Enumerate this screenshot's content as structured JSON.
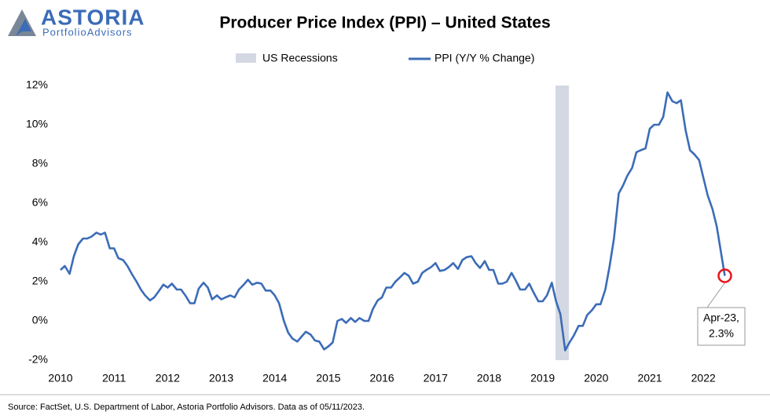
{
  "logo": {
    "name": "ASTORIA",
    "tagline": "PortfolioAdvisors"
  },
  "chart_data": {
    "type": "line",
    "title": "Producer Price Index (PPI) – United States",
    "source": "Source: FactSet, U.S. Department of Labor, Astoria Portfolio Advisors. Data as of 05/11/2023.",
    "recessions": {
      "name": "US Recessions",
      "color": "#d3d8e3",
      "spans": [
        [
          2019.24,
          2019.49
        ]
      ]
    },
    "series": [
      {
        "name": "PPI (Y/Y % Change)",
        "color": "#3b6cb7",
        "x": [
          2010,
          2010.08,
          2010.17,
          2010.25,
          2010.33,
          2010.42,
          2010.5,
          2010.58,
          2010.67,
          2010.75,
          2010.83,
          2010.92,
          2011,
          2011.08,
          2011.17,
          2011.25,
          2011.33,
          2011.42,
          2011.5,
          2011.58,
          2011.67,
          2011.75,
          2011.83,
          2011.92,
          2012,
          2012.08,
          2012.17,
          2012.25,
          2012.33,
          2012.42,
          2012.5,
          2012.58,
          2012.67,
          2012.75,
          2012.83,
          2012.92,
          2013,
          2013.08,
          2013.17,
          2013.25,
          2013.33,
          2013.42,
          2013.5,
          2013.58,
          2013.67,
          2013.75,
          2013.83,
          2013.92,
          2014,
          2014.08,
          2014.17,
          2014.25,
          2014.33,
          2014.42,
          2014.5,
          2014.58,
          2014.67,
          2014.75,
          2014.83,
          2014.92,
          2015,
          2015.08,
          2015.17,
          2015.25,
          2015.33,
          2015.42,
          2015.5,
          2015.58,
          2015.67,
          2015.75,
          2015.83,
          2015.92,
          2016,
          2016.08,
          2016.17,
          2016.25,
          2016.33,
          2016.42,
          2016.5,
          2016.58,
          2016.67,
          2016.75,
          2016.83,
          2016.92,
          2017,
          2017.08,
          2017.17,
          2017.25,
          2017.33,
          2017.42,
          2017.5,
          2017.58,
          2017.67,
          2017.75,
          2017.83,
          2017.92,
          2018,
          2018.08,
          2018.17,
          2018.25,
          2018.33,
          2018.42,
          2018.5,
          2018.58,
          2018.67,
          2018.75,
          2018.83,
          2018.92,
          2019,
          2019.08,
          2019.17,
          2019.25,
          2019.33,
          2019.42,
          2019.5,
          2019.58,
          2019.67,
          2019.75,
          2019.83,
          2019.92,
          2020,
          2020.08,
          2020.17,
          2020.25,
          2020.33,
          2020.42,
          2020.5,
          2020.58,
          2020.67,
          2020.75,
          2020.83,
          2020.92,
          2021,
          2021.08,
          2021.17,
          2021.25,
          2021.33,
          2021.42,
          2021.5,
          2021.58,
          2021.67,
          2021.75,
          2021.83,
          2021.92,
          2022,
          2022.08,
          2022.17,
          2022.25,
          2022.4
        ],
        "values": [
          2.6,
          2.8,
          2.4,
          3.3,
          3.9,
          4.2,
          4.2,
          4.3,
          4.5,
          4.4,
          4.5,
          3.7,
          3.7,
          3.2,
          3.1,
          2.8,
          2.4,
          2.0,
          1.6,
          1.3,
          1.05,
          1.2,
          1.5,
          1.85,
          1.7,
          1.9,
          1.6,
          1.6,
          1.3,
          0.9,
          0.9,
          1.65,
          1.95,
          1.7,
          1.1,
          1.3,
          1.1,
          1.2,
          1.3,
          1.2,
          1.6,
          1.85,
          2.1,
          1.85,
          1.95,
          1.9,
          1.55,
          1.55,
          1.3,
          0.9,
          0.0,
          -0.6,
          -0.9,
          -1.05,
          -0.8,
          -0.55,
          -0.7,
          -1.0,
          -1.05,
          -1.45,
          -1.3,
          -1.1,
          0.0,
          0.1,
          -0.1,
          0.15,
          -0.05,
          0.15,
          0.0,
          0.0,
          0.6,
          1.05,
          1.2,
          1.7,
          1.7,
          2.0,
          2.2,
          2.45,
          2.3,
          1.9,
          2.0,
          2.45,
          2.6,
          2.75,
          2.95,
          2.55,
          2.6,
          2.75,
          2.95,
          2.65,
          3.1,
          3.25,
          3.3,
          2.95,
          2.7,
          3.05,
          2.6,
          2.6,
          1.9,
          1.9,
          2.0,
          2.45,
          2.05,
          1.6,
          1.6,
          1.9,
          1.45,
          1.0,
          1.0,
          1.3,
          1.95,
          1.0,
          0.35,
          -1.5,
          -1.1,
          -0.75,
          -0.25,
          -0.25,
          0.3,
          0.55,
          0.85,
          0.85,
          1.6,
          2.8,
          4.2,
          6.5,
          6.9,
          7.4,
          7.8,
          8.6,
          8.7,
          8.8,
          9.8,
          10.0,
          10.0,
          10.4,
          11.65,
          11.2,
          11.1,
          11.25,
          9.7,
          8.7,
          8.5,
          8.2,
          7.3,
          6.4,
          5.7,
          4.8,
          2.3
        ]
      }
    ],
    "annotation": {
      "lines": [
        "Apr-23,",
        "2.3%"
      ],
      "marker_color": "#e8141b"
    },
    "xlim": [
      2010,
      2022.95
    ],
    "xticks": [
      2010,
      2011,
      2012,
      2013,
      2014,
      2015,
      2016,
      2017,
      2018,
      2019,
      2020,
      2021,
      2022
    ],
    "ylim": [
      -2,
      12
    ],
    "yticks": [
      {
        "value": -2,
        "label": "-2%"
      },
      {
        "value": 0,
        "label": "0%"
      },
      {
        "value": 2,
        "label": "2%"
      },
      {
        "value": 4,
        "label": "4%"
      },
      {
        "value": 6,
        "label": "6%"
      },
      {
        "value": 8,
        "label": "8%"
      },
      {
        "value": 10,
        "label": "10%"
      },
      {
        "value": 12,
        "label": "12%"
      }
    ],
    "grid": false
  }
}
